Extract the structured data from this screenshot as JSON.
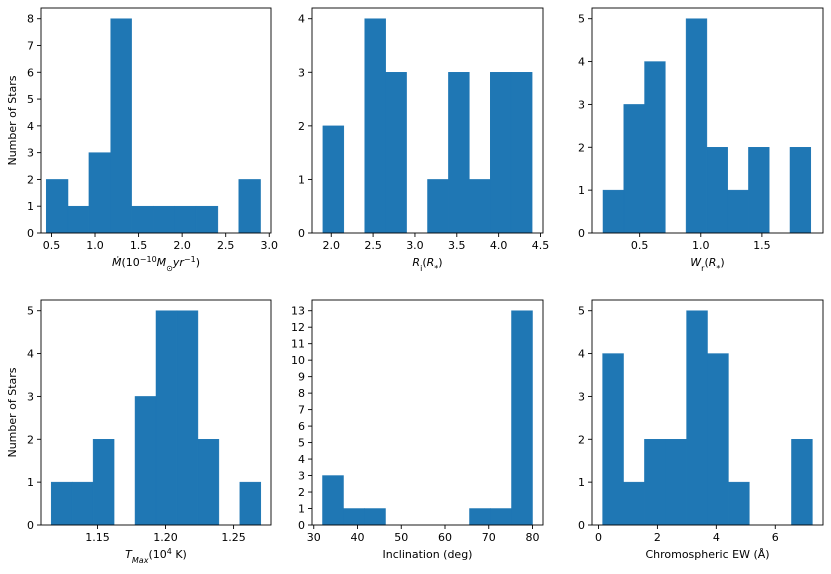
{
  "shared": {
    "ylabel": "Number of Stars",
    "bar_color": "#1f77b4"
  },
  "chart_data": [
    {
      "type": "bar",
      "id": "mdot",
      "xlabel_parts": [
        {
          "t": "Ṁ",
          "s": "italic"
        },
        {
          "t": "(10"
        },
        {
          "t": "−10",
          "s": "sup"
        },
        {
          "t": "M",
          "s": "italic"
        },
        {
          "t": "⊙",
          "s": "sub"
        },
        {
          "t": "yr",
          "s": "italic"
        },
        {
          "t": "−1",
          "s": "sup"
        },
        {
          "t": ")"
        }
      ],
      "xlim": [
        0.38,
        3.02
      ],
      "ylim": [
        0,
        8.4
      ],
      "xticks": [
        0.5,
        1.0,
        1.5,
        2.0,
        2.5,
        3.0
      ],
      "xtick_labels": [
        "0.5",
        "1.0",
        "1.5",
        "2.0",
        "2.5",
        "3.0"
      ],
      "yticks": [
        0,
        1,
        2,
        3,
        4,
        5,
        6,
        7,
        8
      ],
      "ytick_labels": [
        "0",
        "1",
        "2",
        "3",
        "4",
        "5",
        "6",
        "7",
        "8"
      ],
      "bins": [
        [
          0.44,
          0.69,
          2
        ],
        [
          0.69,
          0.93,
          1
        ],
        [
          0.93,
          1.18,
          3
        ],
        [
          1.18,
          1.42,
          8
        ],
        [
          1.42,
          1.67,
          1
        ],
        [
          1.67,
          1.91,
          1
        ],
        [
          1.91,
          2.16,
          1
        ],
        [
          2.16,
          2.41,
          1
        ],
        [
          2.41,
          2.65,
          0
        ],
        [
          2.65,
          2.9,
          2
        ]
      ]
    },
    {
      "type": "bar",
      "id": "ri",
      "xlabel_parts": [
        {
          "t": "R",
          "s": "italic"
        },
        {
          "t": "i",
          "s": "sub"
        },
        {
          "t": "("
        },
        {
          "t": "R",
          "s": "italic"
        },
        {
          "t": "*",
          "s": "sub"
        },
        {
          "t": ")"
        }
      ],
      "xlim": [
        1.77,
        4.53
      ],
      "ylim": [
        0,
        4.2
      ],
      "xticks": [
        2.0,
        2.5,
        3.0,
        3.5,
        4.0,
        4.5
      ],
      "xtick_labels": [
        "2.0",
        "2.5",
        "3.0",
        "3.5",
        "4.0",
        "4.5"
      ],
      "yticks": [
        0,
        1,
        2,
        3,
        4
      ],
      "ytick_labels": [
        "0",
        "1",
        "2",
        "3",
        "4"
      ],
      "bins": [
        [
          1.9,
          2.15,
          2
        ],
        [
          2.15,
          2.4,
          0
        ],
        [
          2.4,
          2.65,
          4
        ],
        [
          2.65,
          2.9,
          3
        ],
        [
          2.9,
          3.15,
          0
        ],
        [
          3.15,
          3.4,
          1
        ],
        [
          3.4,
          3.65,
          3
        ],
        [
          3.65,
          3.9,
          1
        ],
        [
          3.9,
          4.15,
          3
        ],
        [
          4.15,
          4.4,
          3
        ]
      ]
    },
    {
      "type": "bar",
      "id": "wr",
      "xlabel_parts": [
        {
          "t": "W",
          "s": "italic"
        },
        {
          "t": "r",
          "s": "sub"
        },
        {
          "t": "("
        },
        {
          "t": "R",
          "s": "italic"
        },
        {
          "t": "*",
          "s": "sub"
        },
        {
          "t": ")"
        }
      ],
      "xlim": [
        0.11,
        2.0
      ],
      "ylim": [
        0,
        5.25
      ],
      "xticks": [
        0.5,
        1.0,
        1.5
      ],
      "xtick_labels": [
        "0.5",
        "1.0",
        "1.5"
      ],
      "yticks": [
        0,
        1,
        2,
        3,
        4,
        5
      ],
      "ytick_labels": [
        "0",
        "1",
        "2",
        "3",
        "4",
        "5"
      ],
      "bins": [
        [
          0.2,
          0.37,
          1
        ],
        [
          0.37,
          0.54,
          3
        ],
        [
          0.54,
          0.71,
          4
        ],
        [
          0.71,
          0.88,
          0
        ],
        [
          0.88,
          1.05,
          5
        ],
        [
          1.05,
          1.22,
          2
        ],
        [
          1.22,
          1.39,
          1
        ],
        [
          1.39,
          1.56,
          2
        ],
        [
          1.56,
          1.73,
          0
        ],
        [
          1.73,
          1.9,
          2
        ]
      ]
    },
    {
      "type": "bar",
      "id": "tmax",
      "xlabel_parts": [
        {
          "t": "T",
          "s": "italic"
        },
        {
          "t": "Max",
          "s": "sub-italic"
        },
        {
          "t": "(10"
        },
        {
          "t": "4",
          "s": "sup"
        },
        {
          "t": " K)"
        }
      ],
      "xlim": [
        1.1085,
        1.2775
      ],
      "ylim": [
        0,
        5.25
      ],
      "xticks": [
        1.15,
        1.2,
        1.25
      ],
      "xtick_labels": [
        "1.15",
        "1.20",
        "1.25"
      ],
      "yticks": [
        0,
        1,
        2,
        3,
        4,
        5
      ],
      "ytick_labels": [
        "0",
        "1",
        "2",
        "3",
        "4",
        "5"
      ],
      "bins": [
        [
          1.116,
          1.1314,
          1
        ],
        [
          1.1314,
          1.1468,
          1
        ],
        [
          1.1468,
          1.1622,
          2
        ],
        [
          1.1622,
          1.1776,
          0
        ],
        [
          1.1776,
          1.193,
          3
        ],
        [
          1.193,
          1.2084,
          5
        ],
        [
          1.2084,
          1.2238,
          5
        ],
        [
          1.2238,
          1.2392,
          2
        ],
        [
          1.2392,
          1.2546,
          0
        ],
        [
          1.2546,
          1.27,
          1
        ]
      ]
    },
    {
      "type": "bar",
      "id": "incl",
      "xlabel_parts": [
        {
          "t": "Inclination (deg)"
        }
      ],
      "xlim": [
        29.6,
        82.4
      ],
      "ylim": [
        0,
        13.65
      ],
      "xticks": [
        30,
        40,
        50,
        60,
        70,
        80
      ],
      "xtick_labels": [
        "30",
        "40",
        "50",
        "60",
        "70",
        "80"
      ],
      "yticks": [
        0,
        1,
        2,
        3,
        4,
        5,
        6,
        7,
        8,
        9,
        10,
        11,
        12,
        13
      ],
      "ytick_labels": [
        "0",
        "1",
        "2",
        "3",
        "4",
        "5",
        "6",
        "7",
        "8",
        "9",
        "10",
        "11",
        "12",
        "13"
      ],
      "bins": [
        [
          32,
          36.8,
          3
        ],
        [
          36.8,
          41.6,
          1
        ],
        [
          41.6,
          46.4,
          1
        ],
        [
          46.4,
          51.2,
          0
        ],
        [
          51.2,
          56,
          0
        ],
        [
          56,
          60.8,
          0
        ],
        [
          60.8,
          65.6,
          0
        ],
        [
          65.6,
          70.4,
          1
        ],
        [
          70.4,
          75.2,
          1
        ],
        [
          75.2,
          80,
          13
        ]
      ]
    },
    {
      "type": "bar",
      "id": "ew",
      "xlabel_parts": [
        {
          "t": "Chromospheric EW (Å)"
        }
      ],
      "xlim": [
        -0.22,
        7.62
      ],
      "ylim": [
        0,
        5.25
      ],
      "xticks": [
        0,
        2,
        4,
        6
      ],
      "xtick_labels": [
        "0",
        "2",
        "4",
        "6"
      ],
      "yticks": [
        0,
        1,
        2,
        3,
        4,
        5
      ],
      "ytick_labels": [
        "0",
        "1",
        "2",
        "3",
        "4",
        "5"
      ],
      "bins": [
        [
          0.14,
          0.85,
          4
        ],
        [
          0.85,
          1.56,
          1
        ],
        [
          1.56,
          2.28,
          2
        ],
        [
          2.28,
          2.99,
          2
        ],
        [
          2.99,
          3.7,
          5
        ],
        [
          3.7,
          4.41,
          4
        ],
        [
          4.41,
          5.12,
          1
        ],
        [
          5.12,
          5.84,
          0
        ],
        [
          5.84,
          6.55,
          0
        ],
        [
          6.55,
          7.26,
          2
        ]
      ]
    }
  ]
}
